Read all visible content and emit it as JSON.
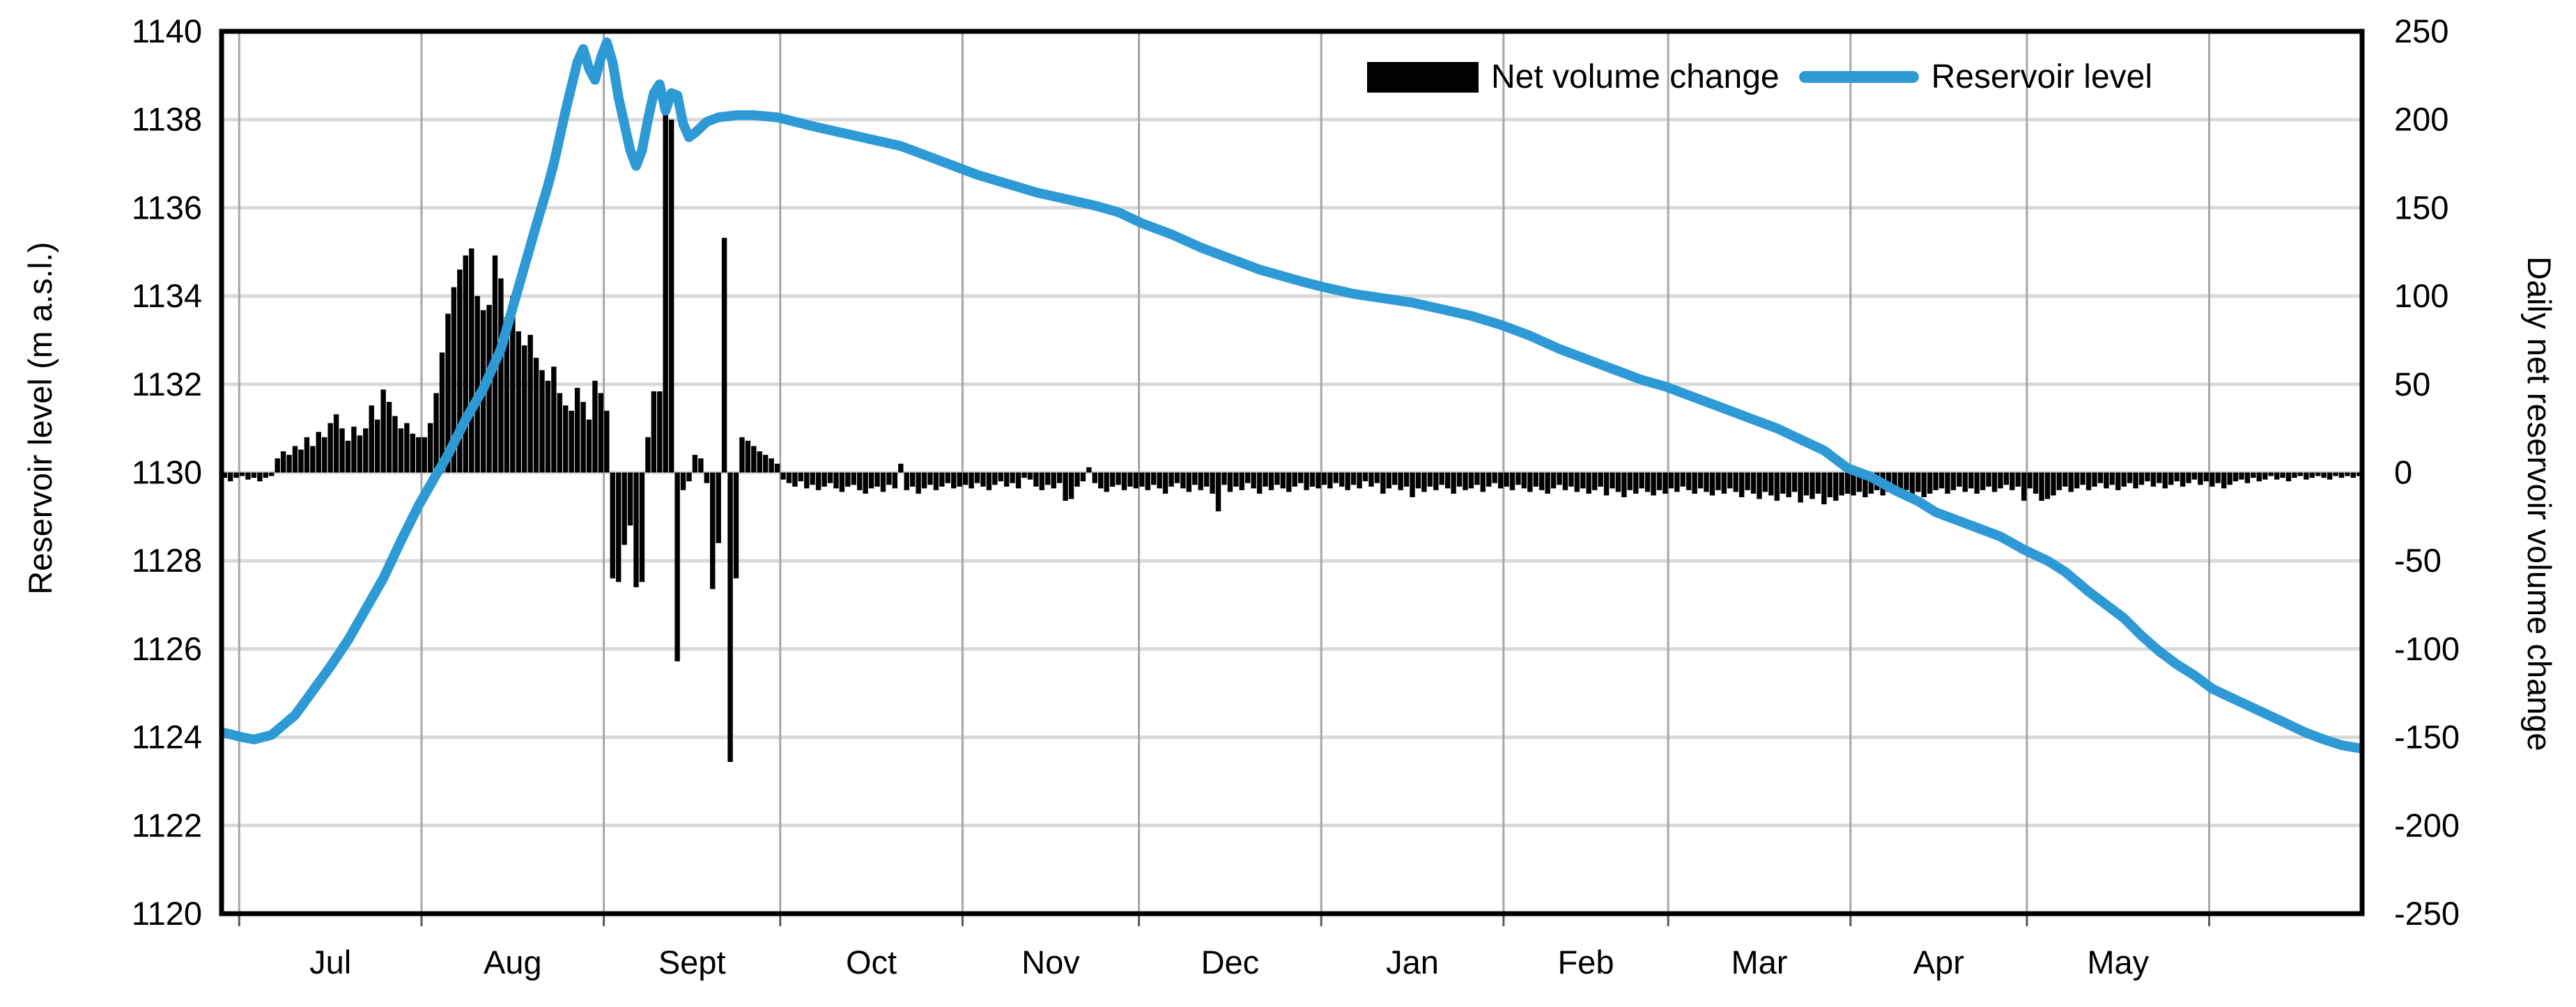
{
  "chart_data": {
    "type": "combo bar+line",
    "title": "",
    "left_axis": {
      "label": "Reservoir level (m a.s.l.)",
      "min": 1120,
      "max": 1140,
      "ticks": [
        1140,
        1138,
        1136,
        1134,
        1132,
        1130,
        1128,
        1126,
        1124,
        1122,
        1120
      ]
    },
    "right_axis": {
      "label": "Daily net reservoir volume change",
      "min": -250,
      "max": 250,
      "ticks": [
        250,
        200,
        150,
        100,
        50,
        0,
        -50,
        -100,
        -150,
        -200,
        -250
      ]
    },
    "x_axis": {
      "month_labels": [
        "Jul",
        "Aug",
        "Sept",
        "Oct",
        "Nov",
        "Dec",
        "Jan",
        "Feb",
        "Mar",
        "Apr",
        "May"
      ],
      "month_day_counts_before_first_gridline": 3,
      "month_day_counts": [
        31,
        31,
        30,
        31,
        30,
        31,
        31,
        28,
        31,
        30,
        31,
        26
      ],
      "month_start_days": [
        3,
        34,
        65,
        95,
        126,
        156,
        187,
        218,
        246,
        277,
        307,
        338
      ],
      "label_center_days": [
        18.5,
        49.5,
        80,
        110.5,
        141,
        171.5,
        202.5,
        232,
        261.5,
        292,
        322.5
      ],
      "total_days": 364,
      "grid": true
    },
    "legend": {
      "position": "top-right-inside",
      "entries": [
        {
          "label": "Net volume change",
          "type": "bar",
          "color": "#000000"
        },
        {
          "label": "Reservoir level",
          "type": "line",
          "color": "#2D9AD6"
        }
      ]
    },
    "series": [
      {
        "name": "Net volume change",
        "type": "bar",
        "axis": "right",
        "color": "#000000",
        "values_by_month": [
          {
            "month": "late-Jun",
            "values": [
              -3,
              -5,
              -3
            ]
          },
          {
            "month": "Jul",
            "values": [
              -2,
              -4,
              -3,
              -5,
              -3,
              -2,
              8,
              12,
              10,
              15,
              13,
              20,
              15,
              23,
              20,
              28,
              33,
              25,
              18,
              26,
              21,
              25,
              38,
              30,
              47,
              40,
              32,
              25,
              28,
              22,
              20
            ]
          },
          {
            "month": "Aug",
            "values": [
              20,
              28,
              45,
              68,
              90,
              105,
              115,
              123,
              127,
              100,
              92,
              95,
              123,
              110,
              88,
              100,
              80,
              72,
              78,
              65,
              58,
              52,
              60,
              45,
              38,
              35,
              48,
              40,
              30,
              52,
              45
            ]
          },
          {
            "month": "Sep",
            "values": [
              35,
              -60,
              -62,
              -41,
              -30,
              -65,
              -62,
              20,
              46,
              46,
              209,
              200,
              -107,
              -10,
              -5,
              10,
              8,
              -6,
              -66,
              -40,
              133,
              -164,
              -60,
              20,
              18,
              15,
              12,
              10,
              8,
              5
            ]
          },
          {
            "month": "Oct",
            "values": [
              -4,
              -6,
              -8,
              -5,
              -9,
              -7,
              -10,
              -8,
              -6,
              -9,
              -11,
              -8,
              -7,
              -10,
              -12,
              -9,
              -8,
              -11,
              -7,
              -9,
              5,
              -10,
              -8,
              -12,
              -9,
              -7,
              -10,
              -8,
              -6,
              -9,
              -8
            ]
          },
          {
            "month": "Nov",
            "values": [
              -7,
              -9,
              -6,
              -8,
              -10,
              -7,
              -5,
              -8,
              -6,
              -9,
              -3,
              -4,
              -8,
              -10,
              -7,
              -9,
              -6,
              -16,
              -15,
              -8,
              -5,
              3,
              -6,
              -9,
              -11,
              -8,
              -7,
              -10,
              -8,
              -9
            ]
          },
          {
            "month": "Dec",
            "values": [
              -8,
              -10,
              -7,
              -9,
              -12,
              -8,
              -6,
              -9,
              -11,
              -7,
              -10,
              -8,
              -12,
              -22,
              -7,
              -11,
              -8,
              -10,
              -6,
              -9,
              -12,
              -8,
              -10,
              -7,
              -9,
              -11,
              -8,
              -6,
              -10,
              -8,
              -9
            ]
          },
          {
            "month": "Jan",
            "values": [
              -7,
              -9,
              -6,
              -8,
              -10,
              -7,
              -9,
              -5,
              -8,
              -6,
              -12,
              -9,
              -7,
              -10,
              -8,
              -14,
              -9,
              -11,
              -8,
              -10,
              -7,
              -9,
              -12,
              -8,
              -10,
              -9,
              -7,
              -11,
              -8,
              -6,
              -9
            ]
          },
          {
            "month": "Feb",
            "values": [
              -8,
              -10,
              -7,
              -9,
              -11,
              -8,
              -10,
              -12,
              -9,
              -7,
              -10,
              -8,
              -11,
              -9,
              -12,
              -10,
              -8,
              -13,
              -9,
              -11,
              -14,
              -10,
              -12,
              -9,
              -11,
              -13,
              -10,
              -12
            ]
          },
          {
            "month": "Mar",
            "values": [
              -9,
              -11,
              -8,
              -10,
              -12,
              -9,
              -11,
              -13,
              -10,
              -12,
              -9,
              -11,
              -14,
              -10,
              -12,
              -15,
              -11,
              -13,
              -16,
              -12,
              -14,
              -11,
              -17,
              -13,
              -15,
              -12,
              -18,
              -14,
              -16,
              -13,
              -12
            ]
          },
          {
            "month": "Apr",
            "values": [
              -13,
              -11,
              -14,
              -12,
              -10,
              -13,
              -11,
              -9,
              -12,
              -10,
              -13,
              -11,
              -14,
              -12,
              -10,
              -9,
              -12,
              -10,
              -8,
              -11,
              -9,
              -12,
              -10,
              -8,
              -11,
              -9,
              -7,
              -10,
              -8,
              -16
            ]
          },
          {
            "month": "May",
            "values": [
              -9,
              -12,
              -16,
              -15,
              -13,
              -10,
              -8,
              -11,
              -9,
              -7,
              -10,
              -8,
              -6,
              -9,
              -7,
              -10,
              -8,
              -6,
              -9,
              -7,
              -5,
              -8,
              -6,
              -9,
              -7,
              -5,
              -8,
              -6,
              -4,
              -7,
              -5
            ]
          },
          {
            "month": "Jun",
            "values": [
              -8,
              -6,
              -9,
              -7,
              -5,
              -4,
              -6,
              -3,
              -5,
              -4,
              -2,
              -4,
              -3,
              -5,
              -3,
              -2,
              -4,
              -3,
              -2,
              -3,
              -4,
              -2,
              -3,
              -2,
              -3,
              -2
            ]
          }
        ]
      },
      {
        "name": "Reservoir level",
        "type": "line",
        "axis": "left",
        "color": "#2D9AD6",
        "stroke_width": 14,
        "anchors_day_level": [
          [
            0,
            1124.1
          ],
          [
            3,
            1124.0
          ],
          [
            5,
            1123.95
          ],
          [
            8,
            1124.05
          ],
          [
            12,
            1124.5
          ],
          [
            15,
            1125.05
          ],
          [
            18,
            1125.6
          ],
          [
            21,
            1126.2
          ],
          [
            24,
            1126.9
          ],
          [
            27,
            1127.6
          ],
          [
            30,
            1128.45
          ],
          [
            33,
            1129.25
          ],
          [
            36,
            1129.95
          ],
          [
            38,
            1130.4
          ],
          [
            41,
            1131.2
          ],
          [
            44,
            1131.9
          ],
          [
            47,
            1132.8
          ],
          [
            50,
            1134.2
          ],
          [
            53,
            1135.6
          ],
          [
            55,
            1136.5
          ],
          [
            56,
            1137.0
          ],
          [
            58,
            1138.2
          ],
          [
            60,
            1139.3
          ],
          [
            61,
            1139.6
          ],
          [
            62,
            1139.15
          ],
          [
            63,
            1138.9
          ],
          [
            64,
            1139.4
          ],
          [
            65,
            1139.75
          ],
          [
            66,
            1139.3
          ],
          [
            67,
            1138.5
          ],
          [
            68,
            1137.9
          ],
          [
            69,
            1137.3
          ],
          [
            70,
            1136.95
          ],
          [
            71,
            1137.3
          ],
          [
            72,
            1138.0
          ],
          [
            73,
            1138.6
          ],
          [
            74,
            1138.8
          ],
          [
            75,
            1138.2
          ],
          [
            76,
            1138.6
          ],
          [
            77,
            1138.55
          ],
          [
            78,
            1137.9
          ],
          [
            79,
            1137.6
          ],
          [
            80,
            1137.7
          ],
          [
            82,
            1137.95
          ],
          [
            84,
            1138.05
          ],
          [
            87,
            1138.1
          ],
          [
            90,
            1138.1
          ],
          [
            94,
            1138.05
          ],
          [
            100,
            1137.85
          ],
          [
            105,
            1137.7
          ],
          [
            110,
            1137.55
          ],
          [
            115,
            1137.4
          ],
          [
            120,
            1137.15
          ],
          [
            125,
            1136.9
          ],
          [
            128,
            1136.75
          ],
          [
            133,
            1136.55
          ],
          [
            138,
            1136.35
          ],
          [
            143,
            1136.2
          ],
          [
            148,
            1136.05
          ],
          [
            152,
            1135.9
          ],
          [
            156,
            1135.65
          ],
          [
            161,
            1135.4
          ],
          [
            166,
            1135.1
          ],
          [
            171,
            1134.85
          ],
          [
            176,
            1134.6
          ],
          [
            180,
            1134.45
          ],
          [
            184,
            1134.3
          ],
          [
            187,
            1134.2
          ],
          [
            192,
            1134.05
          ],
          [
            197,
            1133.95
          ],
          [
            202,
            1133.85
          ],
          [
            207,
            1133.7
          ],
          [
            212,
            1133.55
          ],
          [
            217,
            1133.35
          ],
          [
            222,
            1133.1
          ],
          [
            227,
            1132.8
          ],
          [
            232,
            1132.55
          ],
          [
            237,
            1132.3
          ],
          [
            241,
            1132.1
          ],
          [
            245,
            1131.95
          ],
          [
            250,
            1131.7
          ],
          [
            255,
            1131.45
          ],
          [
            260,
            1131.2
          ],
          [
            264,
            1131.0
          ],
          [
            268,
            1130.75
          ],
          [
            272,
            1130.5
          ],
          [
            276,
            1130.1
          ],
          [
            280,
            1129.9
          ],
          [
            284,
            1129.6
          ],
          [
            288,
            1129.35
          ],
          [
            291,
            1129.1
          ],
          [
            294,
            1128.95
          ],
          [
            298,
            1128.75
          ],
          [
            302,
            1128.55
          ],
          [
            306,
            1128.25
          ],
          [
            310,
            1128.0
          ],
          [
            313,
            1127.75
          ],
          [
            317,
            1127.3
          ],
          [
            320,
            1127.0
          ],
          [
            323,
            1126.7
          ],
          [
            326,
            1126.3
          ],
          [
            329,
            1125.95
          ],
          [
            332,
            1125.65
          ],
          [
            335,
            1125.4
          ],
          [
            338,
            1125.1
          ],
          [
            342,
            1124.85
          ],
          [
            346,
            1124.6
          ],
          [
            350,
            1124.35
          ],
          [
            354,
            1124.1
          ],
          [
            357,
            1123.95
          ],
          [
            360,
            1123.82
          ],
          [
            363,
            1123.75
          ]
        ]
      }
    ],
    "colors": {
      "bar": "#000000",
      "line": "#2D9AD6",
      "h_gridline": "#D9D9D9",
      "v_gridline": "#A6A6A6",
      "border": "#000000",
      "tick_text": "#000000"
    }
  },
  "legend": {
    "bar_label": "Net volume change",
    "line_label": "Reservoir level"
  },
  "axes": {
    "left_title": "Reservoir level (m a.s.l.)",
    "right_title": "Daily net reservoir volume change"
  }
}
